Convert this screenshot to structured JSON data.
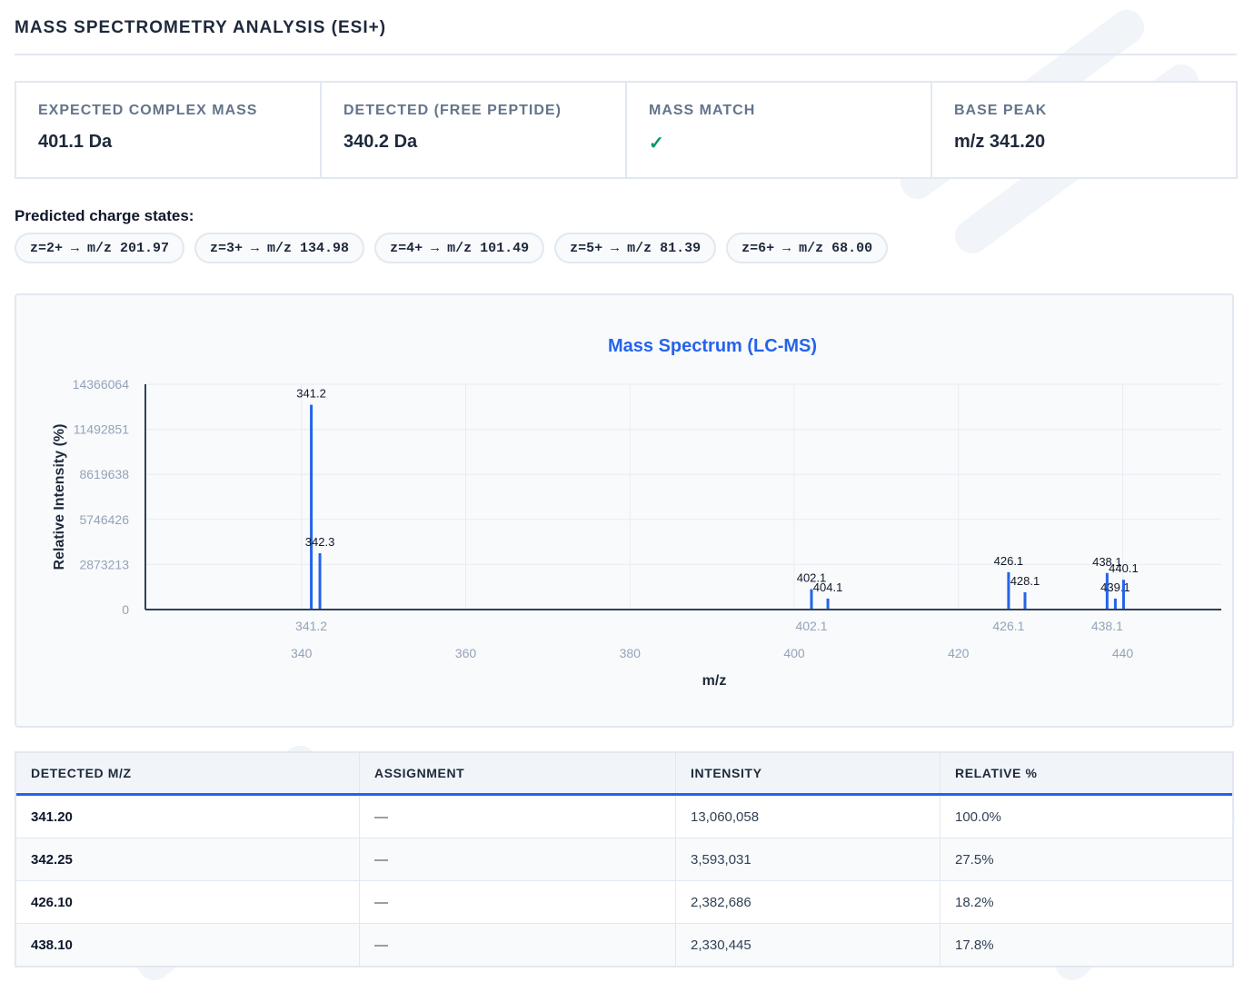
{
  "header": {
    "title": "MASS SPECTROMETRY ANALYSIS (ESI+)"
  },
  "stats": [
    {
      "label": "EXPECTED COMPLEX MASS",
      "value": "401.1 Da"
    },
    {
      "label": "DETECTED (FREE PEPTIDE)",
      "value": "340.2 Da"
    },
    {
      "label": "MASS MATCH",
      "value": "✓"
    },
    {
      "label": "BASE PEAK",
      "value": "m/z 341.20"
    }
  ],
  "charge_states": {
    "title": "Predicted charge states:",
    "items": [
      "z=2+ → m/z 201.97",
      "z=3+ → m/z 134.98",
      "z=4+ → m/z 101.49",
      "z=5+ → m/z 81.39",
      "z=6+ → m/z 68.00"
    ]
  },
  "colors": {
    "accent": "#2563eb",
    "ok": "#059669",
    "axis": "#334155"
  },
  "chart_data": {
    "type": "bar",
    "title": "Mass Spectrum (LC-MS)",
    "xlabel": "m/z",
    "ylabel": "Relative Intensity (%)",
    "xlim": [
      321,
      452
    ],
    "ylim": [
      0,
      14366064
    ],
    "yticks": [
      0,
      2873213,
      5746426,
      8619638,
      11492851,
      14366064
    ],
    "xticks": [
      340,
      360,
      380,
      400,
      420,
      440
    ],
    "labeled_xticks": [
      {
        "x": 341.2,
        "label": "341.2"
      },
      {
        "x": 402.1,
        "label": "402.1"
      },
      {
        "x": 426.1,
        "label": "426.1"
      },
      {
        "x": 438.1,
        "label": "438.1"
      }
    ],
    "grid": true,
    "peaks": [
      {
        "mz": 341.2,
        "label": "341.2",
        "intensity": 13060058
      },
      {
        "mz": 342.25,
        "label": "342.3",
        "intensity": 3593031
      },
      {
        "mz": 402.1,
        "label": "402.1",
        "intensity": 1300000
      },
      {
        "mz": 404.1,
        "label": "404.1",
        "intensity": 700000
      },
      {
        "mz": 426.1,
        "label": "426.1",
        "intensity": 2382686
      },
      {
        "mz": 428.1,
        "label": "428.1",
        "intensity": 1100000
      },
      {
        "mz": 438.1,
        "label": "438.1",
        "intensity": 2330445
      },
      {
        "mz": 439.1,
        "label": "439.1",
        "intensity": 700000
      },
      {
        "mz": 440.1,
        "label": "440.1",
        "intensity": 1900000
      }
    ]
  },
  "table": {
    "headers": [
      "DETECTED M/Z",
      "ASSIGNMENT",
      "INTENSITY",
      "RELATIVE %"
    ],
    "rows": [
      [
        "341.20",
        "—",
        "13,060,058",
        "100.0%"
      ],
      [
        "342.25",
        "—",
        "3,593,031",
        "27.5%"
      ],
      [
        "426.10",
        "—",
        "2,382,686",
        "18.2%"
      ],
      [
        "438.10",
        "—",
        "2,330,445",
        "17.8%"
      ]
    ]
  }
}
